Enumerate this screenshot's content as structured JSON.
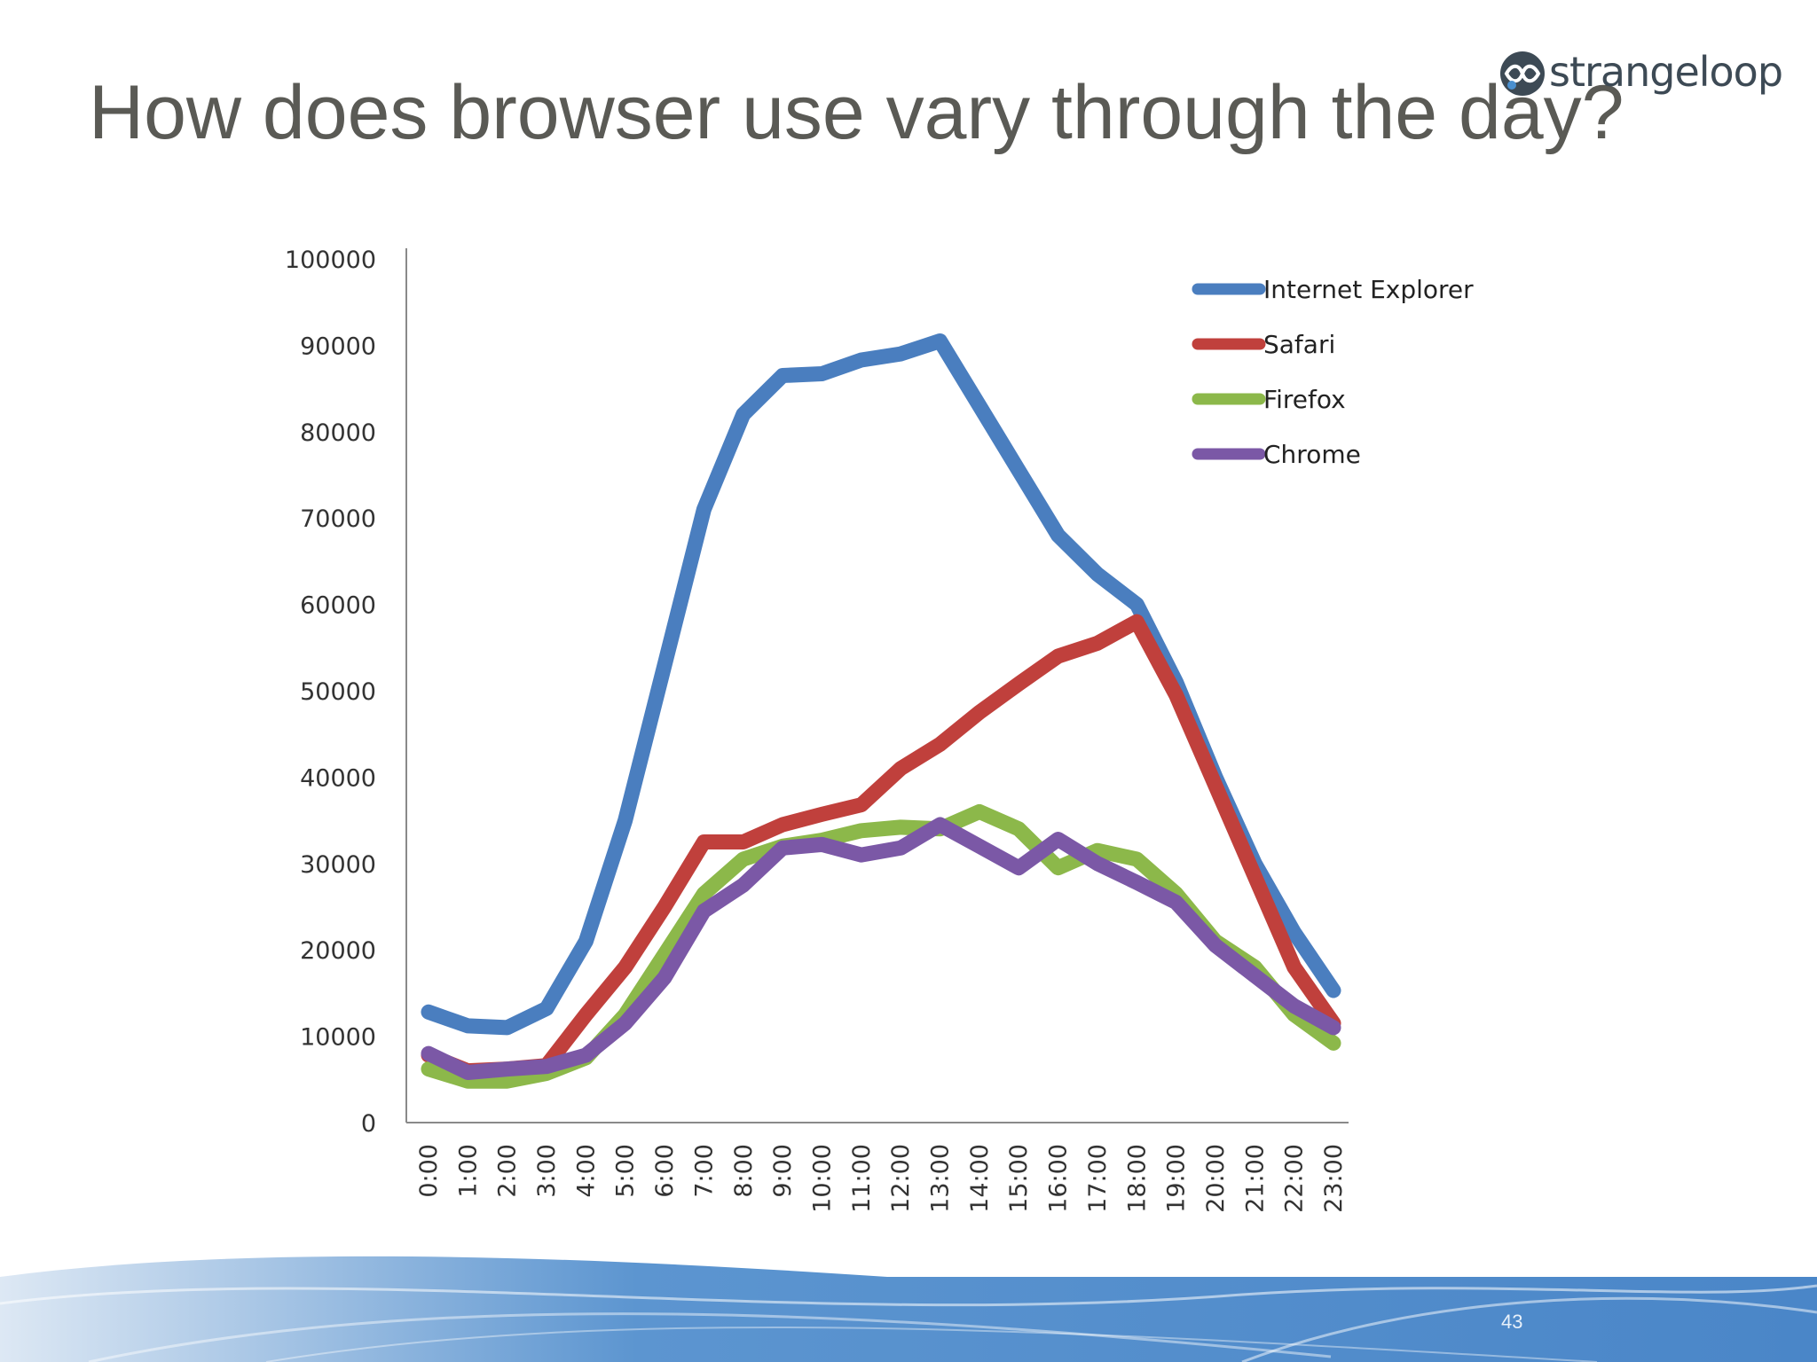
{
  "slide": {
    "title": "How does browser use vary through the day?",
    "logo_text": "strangeloop",
    "page_number": "43"
  },
  "colors": {
    "title": "#5a5a55",
    "band": "#4a86c8"
  },
  "chart_data": {
    "type": "line",
    "title": "",
    "xlabel": "",
    "ylabel": "",
    "ylim": [
      0,
      100000
    ],
    "yticks": [
      0,
      10000,
      20000,
      30000,
      40000,
      50000,
      60000,
      70000,
      80000,
      90000,
      100000
    ],
    "x": [
      "0:00",
      "1:00",
      "2:00",
      "3:00",
      "4:00",
      "5:00",
      "6:00",
      "7:00",
      "8:00",
      "9:00",
      "10:00",
      "11:00",
      "12:00",
      "13:00",
      "14:00",
      "15:00",
      "16:00",
      "17:00",
      "18:00",
      "19:00",
      "20:00",
      "21:00",
      "22:00",
      "23:00"
    ],
    "grid": false,
    "legend": "top-right",
    "series": [
      {
        "name": "Internet Explorer",
        "color": "#4a7ebf",
        "values": [
          12800,
          11200,
          11000,
          13200,
          21000,
          35000,
          53000,
          71000,
          82000,
          86500,
          86700,
          88300,
          89000,
          90500,
          83000,
          75500,
          68000,
          63500,
          60000,
          51000,
          40000,
          30000,
          22000,
          15300
        ]
      },
      {
        "name": "Safari",
        "color": "#c0403c",
        "values": [
          7800,
          6000,
          6200,
          6600,
          12500,
          18000,
          25000,
          32500,
          32500,
          34500,
          35700,
          36800,
          41000,
          43800,
          47500,
          50800,
          54000,
          55500,
          58000,
          49500,
          39000,
          28500,
          18000,
          11500
        ]
      },
      {
        "name": "Firefox",
        "color": "#8cb84a",
        "values": [
          6200,
          4800,
          4800,
          5700,
          7500,
          12500,
          19500,
          26500,
          30500,
          32000,
          32700,
          33800,
          34200,
          34000,
          36000,
          34000,
          29500,
          31500,
          30500,
          26500,
          21000,
          18000,
          12500,
          9200
        ]
      },
      {
        "name": "Chrome",
        "color": "#7b58a6",
        "values": [
          8000,
          5800,
          6200,
          6500,
          7800,
          11500,
          16800,
          24500,
          27500,
          31800,
          32200,
          31000,
          31800,
          34500,
          32000,
          29500,
          32800,
          30000,
          27800,
          25500,
          20500,
          17000,
          13500,
          11000
        ]
      }
    ]
  }
}
